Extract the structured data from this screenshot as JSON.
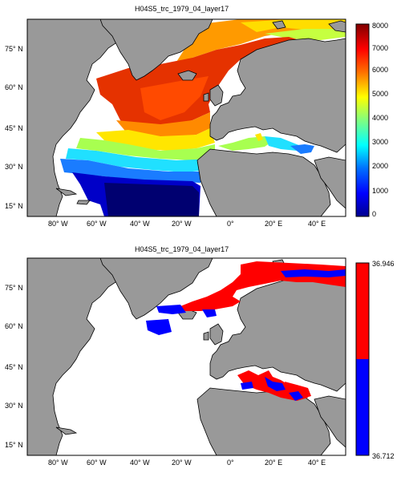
{
  "map1": {
    "title": "H04S5_trc_1979_04_layer17",
    "lat_labels": [
      "75° N",
      "60° N",
      "45° N",
      "30° N",
      "15° N"
    ],
    "lon_labels": [
      "80° W",
      "60° W",
      "40° W",
      "20° W",
      "0°",
      "20° E",
      "40° E"
    ],
    "colorbar": {
      "ticks": [
        "8000",
        "7000",
        "6000",
        "5000",
        "4000",
        "3000",
        "2000",
        "1000",
        "0"
      ],
      "min": 0,
      "max": 8000,
      "colormap": "jet"
    }
  },
  "map2": {
    "title": "H04S5_trc_1979_04_layer17",
    "lat_labels": [
      "75° N",
      "60° N",
      "45° N",
      "30° N",
      "15° N"
    ],
    "lon_labels": [
      "80° W",
      "60° W",
      "40° W",
      "20° W",
      "0°",
      "20° E",
      "40° E"
    ],
    "colorbar": {
      "max_label": "36.946",
      "min_label": "36.712",
      "colors": [
        "#ff0000",
        "#0000ff"
      ]
    }
  },
  "colors": {
    "land": "#999999",
    "ocean": "#ffffff"
  }
}
